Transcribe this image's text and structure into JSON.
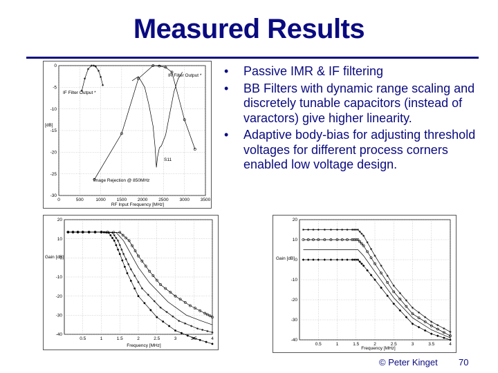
{
  "slide": {
    "title": "Measured Results",
    "bullets": [
      "Passive IMR & IF filtering",
      "BB Filters with dynamic range scaling and discretely tunable capacitors (instead of varactors) give higher linearity.",
      "Adaptive body-bias for adjusting threshold voltages for different process corners enabled low voltage design."
    ],
    "footer": {
      "author": "© Peter Kinget",
      "page": "70"
    }
  },
  "chart_data": [
    {
      "type": "line",
      "xlabel": "RF Input Frequency [MHz]",
      "ylabel": "[dB]",
      "xlim": [
        0,
        3500
      ],
      "ylim": [
        -30,
        0
      ],
      "xticks": [
        0,
        500,
        1000,
        1500,
        2000,
        2500,
        3000,
        3500
      ],
      "yticks": [
        0,
        -5,
        -10,
        -15,
        -20,
        -25,
        -30
      ],
      "grid": true,
      "annotations": [
        "IF Filter Output *",
        "IR Filter Output *",
        "Image Rejection @ 850MHz",
        "S11"
      ],
      "series": [
        {
          "x": [
            550,
            620,
            700,
            780,
            830,
            880,
            950,
            1000,
            1050
          ],
          "y": [
            -5.8,
            -3,
            -0.8,
            0,
            0,
            -0.2,
            -1.2,
            -2.6,
            -4.5
          ]
        },
        {
          "x": [
            850,
            1500,
            1900,
            2250,
            2400,
            2550,
            2700,
            3000,
            3250
          ],
          "y": [
            -26.3,
            -15.7,
            -3,
            0,
            -0.1,
            -0.4,
            -1.5,
            -12.5,
            -19.3
          ]
        },
        {
          "x": [
            1750,
            1900,
            2050,
            2150,
            2250,
            2300,
            2330,
            2360,
            2400,
            2450,
            2550,
            2650,
            2750,
            2850,
            2950
          ],
          "y": [
            -3.5,
            -2.5,
            -5,
            -9,
            -14,
            -19,
            -23.5,
            -21,
            -19,
            -18.5,
            -16,
            -11,
            -6,
            -3,
            -1.5
          ]
        }
      ]
    },
    {
      "type": "line",
      "xlabel": "Frequency [MHz]",
      "ylabel": "Gain [dB]",
      "xlim": [
        0,
        4
      ],
      "ylim": [
        -40,
        20
      ],
      "xticks": [
        0.5,
        1,
        1.5,
        2,
        2.5,
        3,
        3.5,
        4
      ],
      "yticks": [
        20,
        10,
        0,
        -10,
        -20,
        -30,
        -40
      ],
      "grid": true,
      "series": [
        {
          "x": [
            0.1,
            0.5,
            1.0,
            1.2,
            1.35,
            1.5,
            1.7,
            2.0,
            2.5,
            3.0,
            3.5,
            4.0
          ],
          "y": [
            13.5,
            13.5,
            13.5,
            13.2,
            9,
            2,
            -8,
            -20,
            -31,
            -38,
            -42,
            -45
          ]
        },
        {
          "x": [
            0.1,
            0.5,
            1.0,
            1.3,
            1.45,
            1.6,
            1.8,
            2.1,
            2.6,
            3.1,
            3.6,
            4.0
          ],
          "y": [
            13.5,
            13.5,
            13.5,
            13.2,
            9,
            2,
            -6,
            -16,
            -26,
            -33,
            -37,
            -39
          ]
        },
        {
          "x": [
            0.1,
            0.5,
            1.0,
            1.4,
            1.6,
            1.8,
            2.0,
            2.3,
            2.8,
            3.3,
            3.7,
            4.0
          ],
          "y": [
            13.5,
            13.5,
            13.5,
            13.3,
            9,
            2,
            -5,
            -13,
            -23,
            -30,
            -33,
            -35
          ]
        },
        {
          "x": [
            0.1,
            0.5,
            1.0,
            1.5,
            1.75,
            2.0,
            2.3,
            2.6,
            3.0,
            3.4,
            3.8,
            4.0
          ],
          "y": [
            13.5,
            13.5,
            13.5,
            13.3,
            9,
            1,
            -7,
            -14,
            -20,
            -25,
            -29,
            -31
          ]
        }
      ]
    },
    {
      "type": "line",
      "xlabel": "Frequency [MHz]",
      "ylabel": "Gain [dB]",
      "xlim": [
        0,
        4
      ],
      "ylim": [
        -40,
        20
      ],
      "xticks": [
        0.5,
        1,
        1.5,
        2,
        2.5,
        3,
        3.5,
        4
      ],
      "yticks": [
        20,
        10,
        0,
        -10,
        -20,
        -30,
        -40
      ],
      "grid": true,
      "series": [
        {
          "x": [
            0.1,
            0.5,
            1.0,
            1.4,
            1.55,
            1.7,
            2.0,
            2.5,
            3.0,
            3.5,
            4.0
          ],
          "y": [
            15,
            15,
            15,
            15,
            15,
            12,
            2,
            -13,
            -24,
            -31,
            -36
          ]
        },
        {
          "x": [
            0.1,
            0.5,
            1.0,
            1.4,
            1.55,
            1.7,
            2.0,
            2.5,
            3.0,
            3.5,
            4.0
          ],
          "y": [
            10,
            10,
            10,
            10,
            10,
            7,
            -2,
            -16,
            -27,
            -33,
            -38
          ]
        },
        {
          "x": [
            0.1,
            0.5,
            1.0,
            1.4,
            1.55,
            1.7,
            2.0,
            2.5,
            3.0,
            3.5,
            4.0
          ],
          "y": [
            5,
            5,
            5,
            5,
            5,
            2,
            -6,
            -19,
            -29,
            -35,
            -39
          ]
        },
        {
          "x": [
            0.1,
            0.5,
            1.0,
            1.4,
            1.55,
            1.7,
            2.0,
            2.5,
            3.0,
            3.5,
            4.0
          ],
          "y": [
            0,
            0,
            0,
            0,
            0,
            -3,
            -10,
            -22,
            -32,
            -37,
            -40
          ]
        }
      ]
    }
  ]
}
